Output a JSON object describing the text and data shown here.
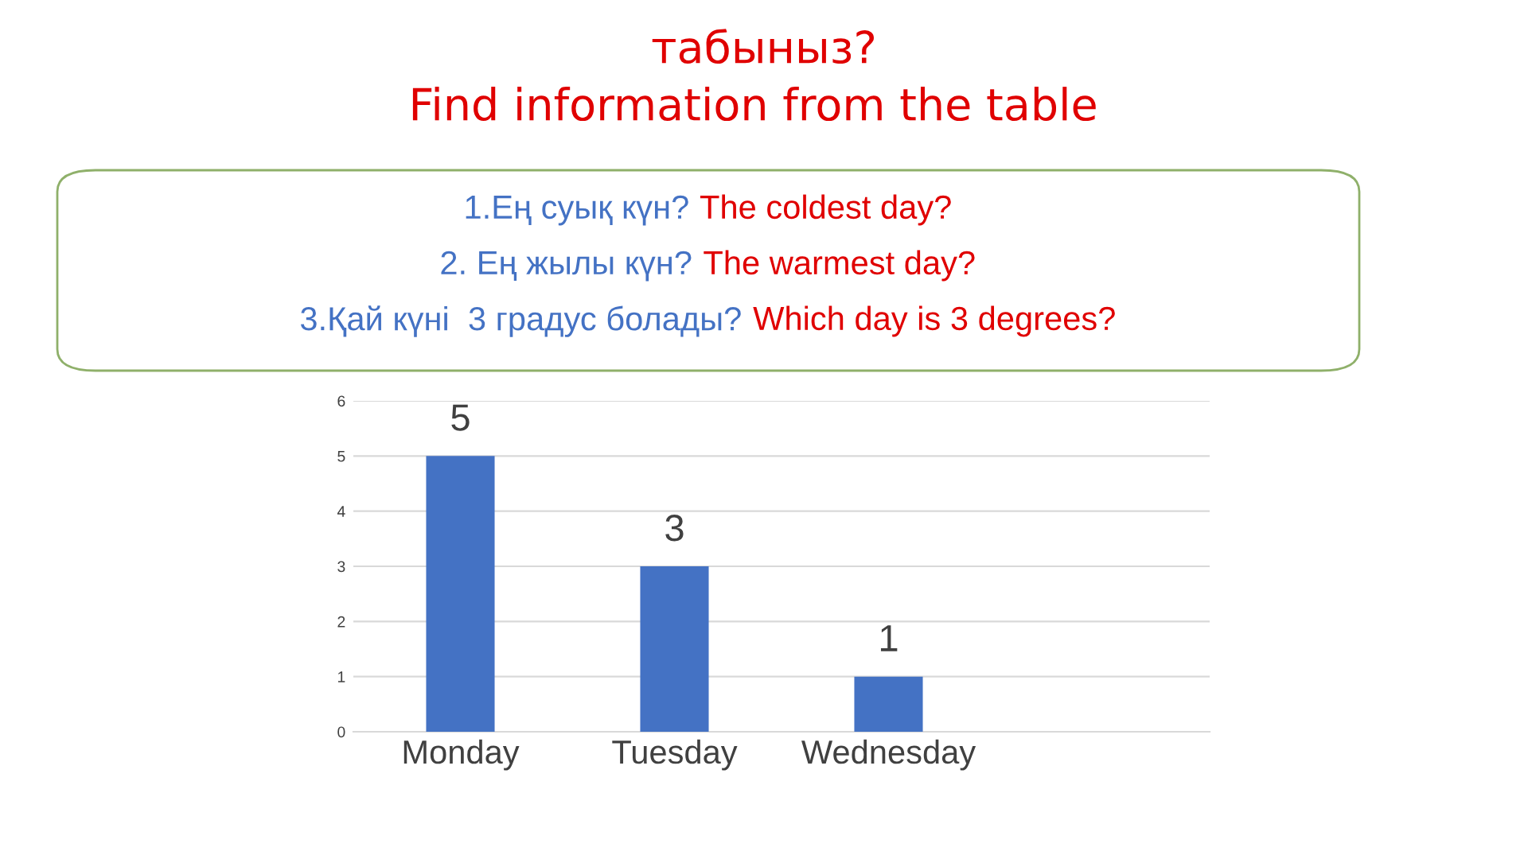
{
  "chart_data": {
    "type": "bar",
    "title": "табыныз?",
    "subtitle": "Find information from the table",
    "annotations": [
      "1.Ең суық күн? ",
      "The coldest day?",
      "2. Ең жылы күн? ",
      "The warmest day?",
      "3.Қай күні  3 градус болады? ",
      "Which day is 3 degrees?"
    ],
    "categories": [
      "Monday",
      "Tuesday",
      "Wednesday",
      null
    ],
    "values": [
      5,
      3,
      1,
      null
    ],
    "color": "#4472c4",
    "ylim": [
      0,
      6
    ],
    "yticks": [
      0,
      1,
      2,
      3,
      4,
      5,
      6
    ],
    "grid": "y",
    "data_labels": true
  }
}
